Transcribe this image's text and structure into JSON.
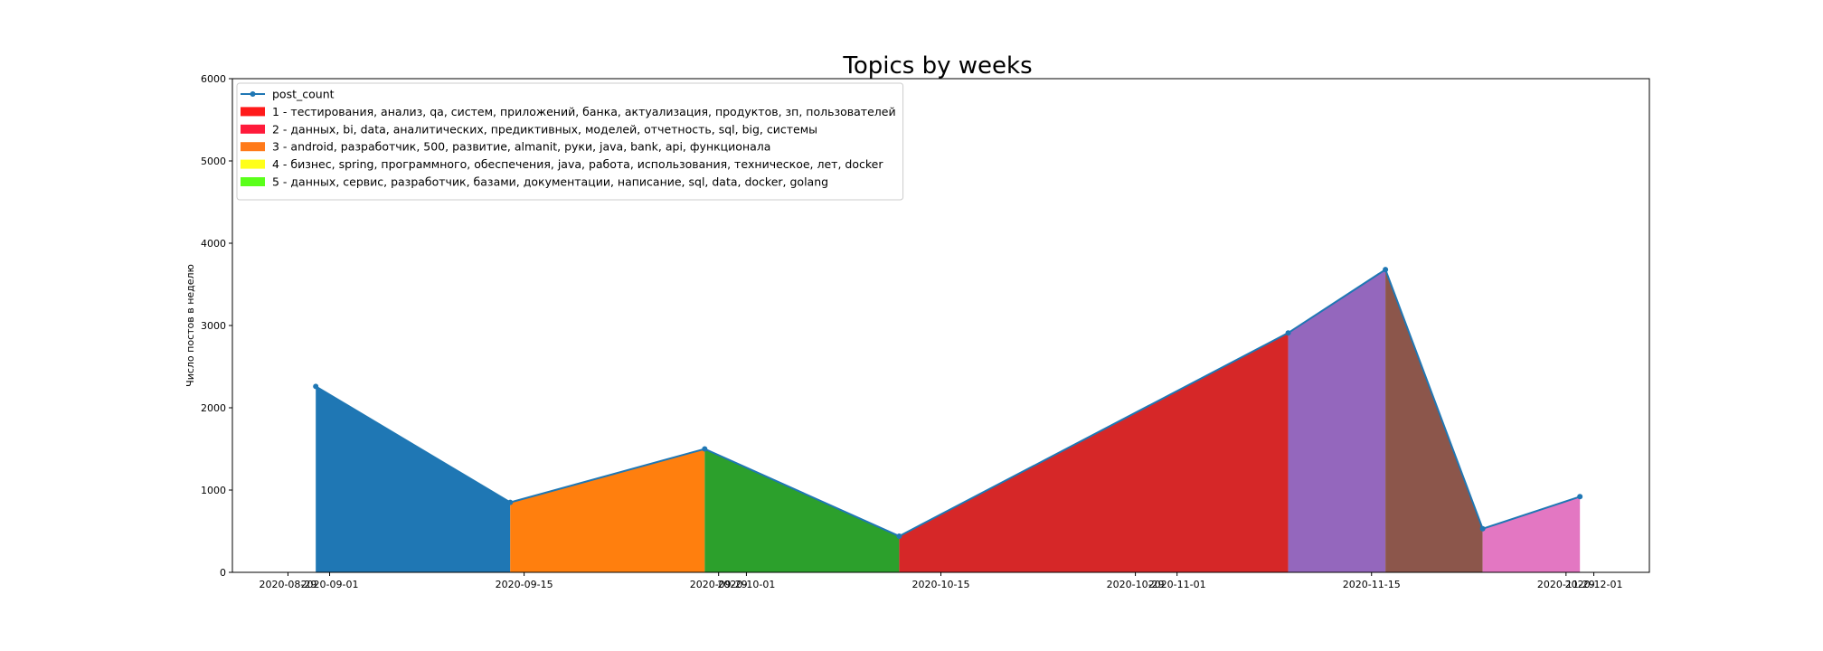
{
  "chart_data": {
    "type": "area",
    "title": "Topics by weeks",
    "xlabel": "",
    "ylabel": "Число постов в неделю",
    "ylim": [
      0,
      6000
    ],
    "yticks": [
      0,
      1000,
      2000,
      3000,
      4000,
      5000,
      6000
    ],
    "xlim": [
      "2020-08-25",
      "2020-12-05"
    ],
    "xticks": [
      "2020-08-29",
      "2020-09-01",
      "2020-09-15",
      "2020-09-29",
      "2020-10-01",
      "2020-10-15",
      "2020-10-29",
      "2020-11-01",
      "2020-11-15",
      "2020-11-29",
      "2020-12-01"
    ],
    "grid": false,
    "legend_position": "top-left",
    "line_color": "#1f77b4",
    "series": [
      {
        "name": "post_count",
        "x": [
          "2020-08-31",
          "2020-09-14",
          "2020-09-28",
          "2020-10-12",
          "2020-11-09",
          "2020-11-16",
          "2020-11-23",
          "2020-11-30"
        ],
        "values": [
          2260,
          850,
          1500,
          440,
          2910,
          3680,
          530,
          920
        ]
      }
    ],
    "fill_colors": [
      "#1f77b4",
      "#ff7f0e",
      "#2ca02c",
      "#d62728",
      "#9467bd",
      "#8c564b",
      "#e377c2"
    ],
    "legend_entries": [
      {
        "label": "post_count",
        "kind": "line",
        "color": "#1f77b4"
      },
      {
        "label": "1 - тестирования, анализ, qa, систем, приложений, банка, актуализация, продуктов, зп, пользователей",
        "kind": "patch",
        "color": "#ff1a1a"
      },
      {
        "label": "2 - данных, bi, data, аналитических, предиктивных, моделей, отчетность, sql, big, системы",
        "kind": "patch",
        "color": "#ff1a3a"
      },
      {
        "label": "3 - android, разработчик, 500, развитие, almanit, руки, java, bank, api, функционала",
        "kind": "patch",
        "color": "#ff7a1a"
      },
      {
        "label": "4 - бизнес, spring, программного, обеспечения, java, работа, использования, техническое, лет, docker",
        "kind": "patch",
        "color": "#ffff1a"
      },
      {
        "label": "5 - данных, сервис, разработчик, базами, документации, написание, sql, data, docker, golang",
        "kind": "patch",
        "color": "#5aff1a"
      }
    ]
  }
}
